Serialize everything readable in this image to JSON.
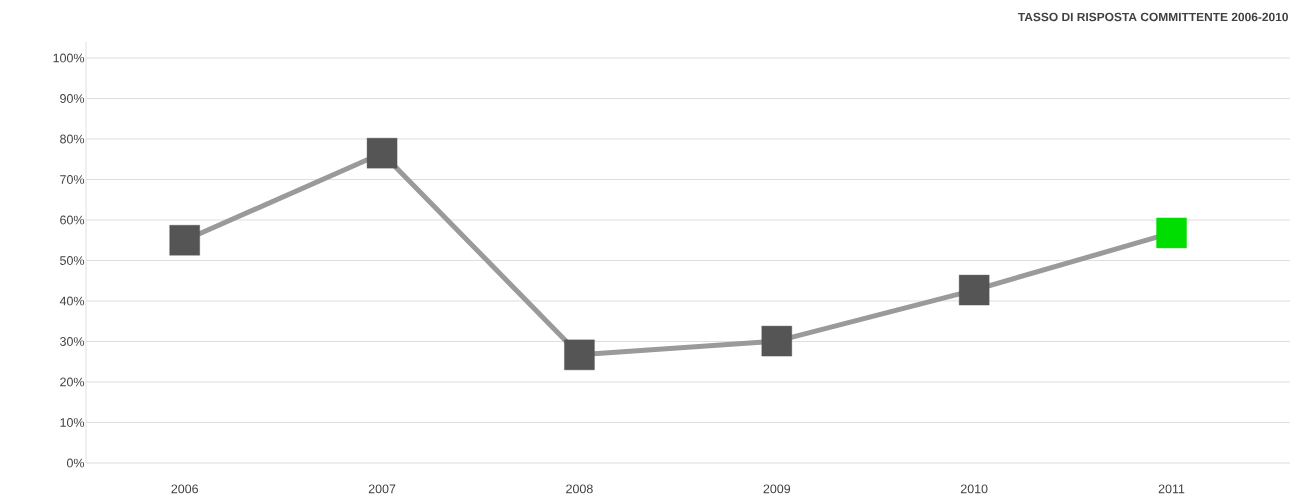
{
  "chart_data": {
    "type": "line",
    "title": "TASSO DI RISPOSTA COMMITTENTE 2006-2010",
    "categories": [
      "2006",
      "2007",
      "2008",
      "2009",
      "2010",
      "2011"
    ],
    "series": [
      {
        "color": "#9a9a9a",
        "colors": [
          "#555555",
          "#555555",
          "#555555",
          "#555555",
          "#555555",
          "#00dd00"
        ],
        "values": [
          55,
          76.5,
          26.7,
          30.1,
          42.7,
          56.8
        ]
      }
    ],
    "ylim": [
      0,
      100
    ],
    "yticks": [
      {
        "value": 0,
        "label": "0%"
      },
      {
        "value": 10,
        "label": "10%"
      },
      {
        "value": 20,
        "label": "20%"
      },
      {
        "value": 30,
        "label": "30%"
      },
      {
        "value": 40,
        "label": "40%"
      },
      {
        "value": 50,
        "label": "50%"
      },
      {
        "value": 60,
        "label": "60%"
      },
      {
        "value": 70,
        "label": "70%"
      },
      {
        "value": 80,
        "label": "80%"
      },
      {
        "value": 90,
        "label": "90%"
      },
      {
        "value": 100,
        "label": "100%"
      }
    ],
    "grid": "y",
    "marker": "square",
    "line_style": "solid"
  }
}
